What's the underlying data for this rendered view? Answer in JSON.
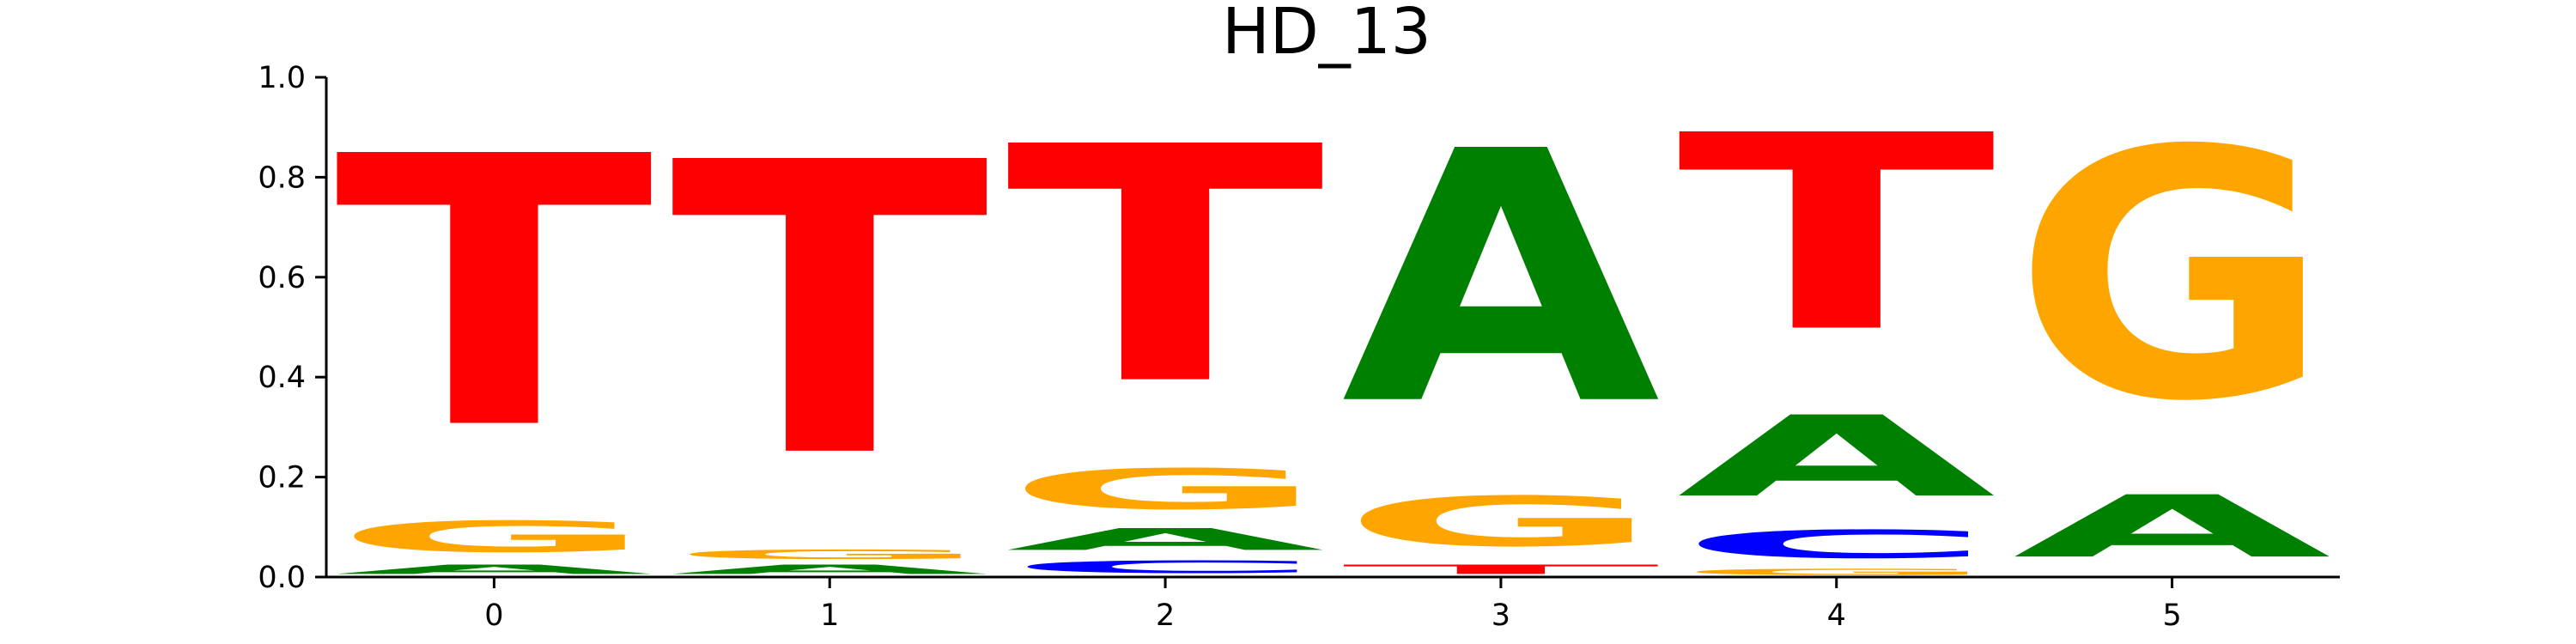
{
  "chart_data": {
    "type": "sequence-logo",
    "title": "HD_13",
    "xlabel": "",
    "ylabel": "",
    "ylim": [
      0,
      1.0
    ],
    "yticks": [
      "0.0",
      "0.2",
      "0.4",
      "0.6",
      "0.8",
      "1.0"
    ],
    "ytick_values": [
      0.0,
      0.2,
      0.4,
      0.6,
      0.8,
      1.0
    ],
    "xticks": [
      "0",
      "1",
      "2",
      "3",
      "4",
      "5"
    ],
    "colors": {
      "A": "#008000",
      "C": "#0000ff",
      "G": "#ffa500",
      "T": "#ff0000"
    },
    "positions": [
      {
        "x": 0,
        "letters": [
          {
            "base": "A",
            "value": 0.03
          },
          {
            "base": "G",
            "value": 0.1
          },
          {
            "base": "T",
            "value": 0.87
          }
        ]
      },
      {
        "x": 1,
        "letters": [
          {
            "base": "A",
            "value": 0.03
          },
          {
            "base": "G",
            "value": 0.03
          },
          {
            "base": "T",
            "value": 0.94
          }
        ]
      },
      {
        "x": 2,
        "letters": [
          {
            "base": "C",
            "value": 0.04
          },
          {
            "base": "A",
            "value": 0.07
          },
          {
            "base": "G",
            "value": 0.13
          },
          {
            "base": "T",
            "value": 0.76
          }
        ]
      },
      {
        "x": 3,
        "letters": [
          {
            "base": "T",
            "value": 0.03
          },
          {
            "base": "G",
            "value": 0.16
          },
          {
            "base": "A",
            "value": 0.81
          }
        ]
      },
      {
        "x": 4,
        "letters": [
          {
            "base": "G",
            "value": 0.02
          },
          {
            "base": "C",
            "value": 0.09
          },
          {
            "base": "A",
            "value": 0.26
          },
          {
            "base": "T",
            "value": 0.63
          }
        ]
      },
      {
        "x": 5,
        "letters": [
          {
            "base": "A",
            "value": 0.2
          },
          {
            "base": "G",
            "value": 0.8
          }
        ]
      }
    ]
  }
}
